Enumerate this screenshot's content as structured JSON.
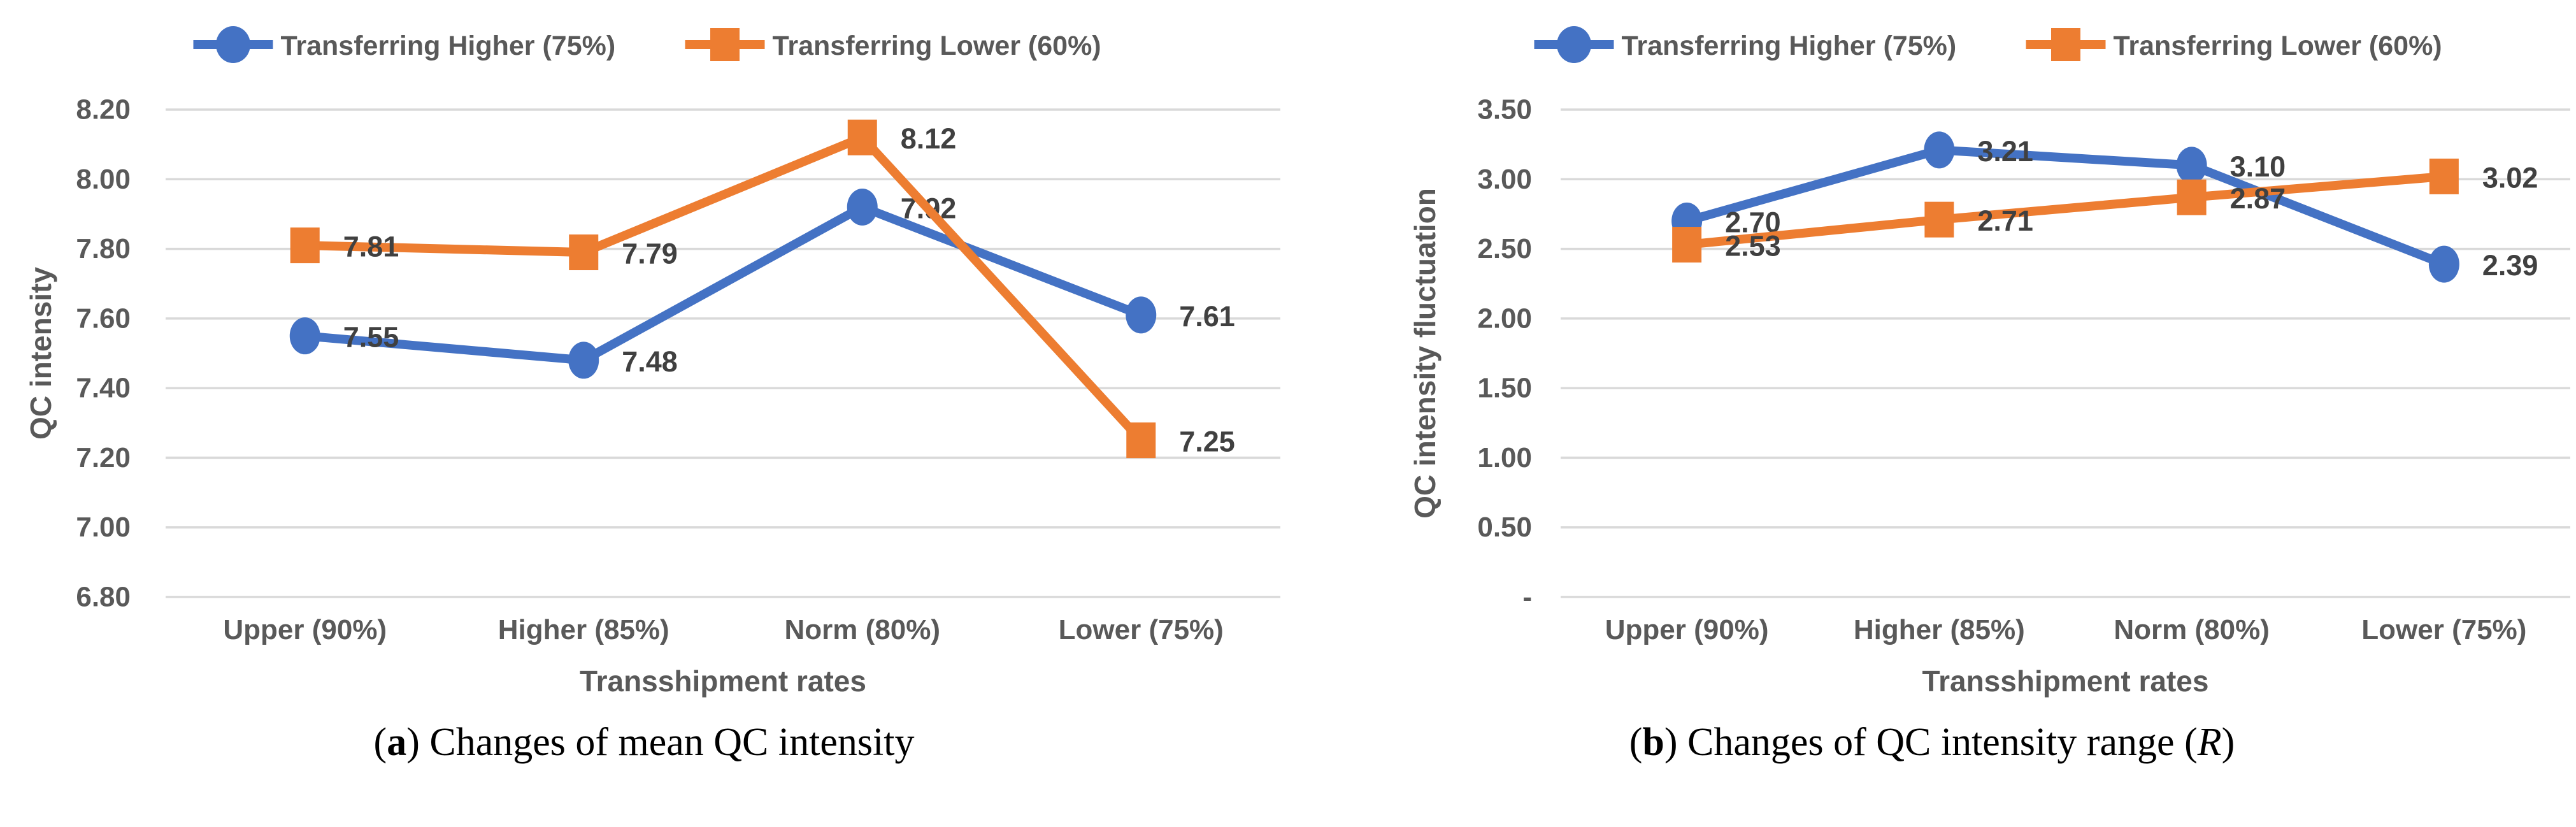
{
  "colors": {
    "series_blue": "#4472C4",
    "series_orange": "#ED7D31",
    "gridline": "#D9D9D9",
    "axis_text": "#595959",
    "data_label": "#404040",
    "caption_text": "#000000",
    "background": "#FFFFFF"
  },
  "captions": {
    "a": {
      "open": "(",
      "letter": "a",
      "close": ")",
      "text": " Changes of mean QC intensity",
      "italic": "",
      "tail": ""
    },
    "b": {
      "open": "(",
      "letter": "b",
      "close": ")",
      "text": " Changes of QC intensity range (",
      "italic": "R",
      "tail": ")"
    }
  },
  "chart_data": [
    {
      "type": "line",
      "panel": "a",
      "title": "(a) Changes of mean QC intensity",
      "xlabel": "Transshipment rates",
      "ylabel": "QC intensity",
      "categories": [
        "Upper (90%)",
        "Higher (85%)",
        "Norm (80%)",
        "Lower (75%)"
      ],
      "series": [
        {
          "name": "Transferring Higher (75%)",
          "color": "#4472C4",
          "marker": "circle",
          "values": [
            7.55,
            7.48,
            7.92,
            7.61
          ],
          "data_labels": [
            "7.55",
            "7.48",
            "7.92",
            "7.61"
          ]
        },
        {
          "name": "Transferring Lower (60%)",
          "color": "#ED7D31",
          "marker": "square",
          "values": [
            7.81,
            7.79,
            8.12,
            7.25
          ],
          "data_labels": [
            "7.81",
            "7.79",
            "8.12",
            "7.25"
          ]
        }
      ],
      "ylim": [
        6.8,
        8.2
      ],
      "ytick_step": 0.2,
      "ytick_labels_top_to_bottom": [
        "8.20",
        "8.00",
        "7.80",
        "7.60",
        "7.40",
        "7.20",
        "7.00",
        "6.80"
      ],
      "grid": true,
      "legend_position": "top"
    },
    {
      "type": "line",
      "panel": "b",
      "title": "(b) Changes of QC intensity range (R)",
      "xlabel": "Transshipment rates",
      "ylabel": "QC intensity fluctuation",
      "categories": [
        "Upper (90%)",
        "Higher (85%)",
        "Norm (80%)",
        "Lower (75%)"
      ],
      "series": [
        {
          "name": "Transferring Higher (75%)",
          "color": "#4472C4",
          "marker": "circle",
          "values": [
            2.7,
            3.21,
            3.1,
            2.39
          ],
          "data_labels": [
            "2.70",
            "3.21",
            "3.10",
            "2.39"
          ]
        },
        {
          "name": "Transferring Lower (60%)",
          "color": "#ED7D31",
          "marker": "square",
          "values": [
            2.53,
            2.71,
            2.87,
            3.02
          ],
          "data_labels": [
            "2.53",
            "2.71",
            "2.87",
            "3.02"
          ]
        }
      ],
      "ylim": [
        0,
        3.5
      ],
      "ytick_step": 0.5,
      "ytick_labels_top_to_bottom": [
        "3.50",
        "3.00",
        "2.50",
        "2.00",
        "1.50",
        "1.00",
        "0.50",
        "-"
      ],
      "grid": true,
      "legend_position": "top"
    }
  ]
}
